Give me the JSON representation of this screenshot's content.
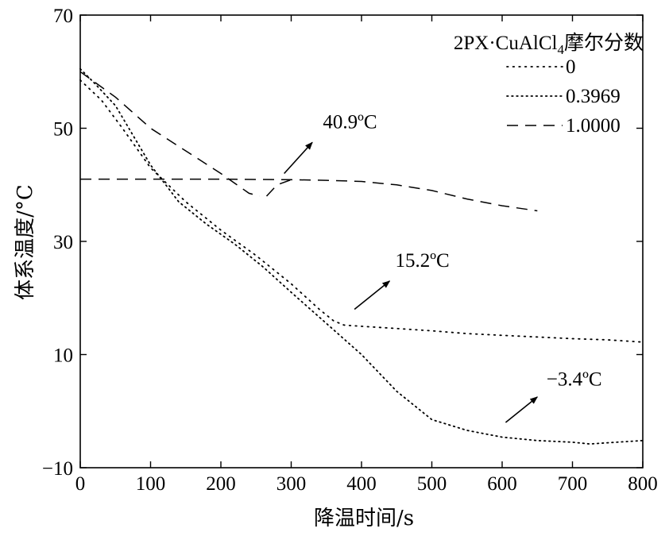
{
  "chart_data": {
    "type": "line",
    "xlabel": "降温时间/s",
    "ylabel": "体系温度/°C",
    "xlim": [
      0,
      800
    ],
    "ylim": [
      -10,
      70
    ],
    "xticks": [
      0,
      100,
      200,
      300,
      400,
      500,
      600,
      700,
      800
    ],
    "yticks": [
      -10,
      10,
      30,
      50,
      70
    ],
    "xtick_labels": [
      "0",
      "100",
      "200",
      "300",
      "400",
      "500",
      "600",
      "700",
      "800"
    ],
    "ytick_labels": [
      "−10",
      "10",
      "30",
      "50",
      "70"
    ],
    "grid": false,
    "legend": {
      "title_main": "2PX·CuAlCl",
      "title_sub": "4",
      "title_tail": "摩尔分数",
      "placement": "top-right"
    },
    "series": [
      {
        "name": "0",
        "style": "dotted",
        "x": [
          0,
          30,
          60,
          100,
          150,
          200,
          250,
          300,
          340,
          360,
          375,
          400,
          450,
          500,
          550,
          600,
          650,
          700,
          750,
          800
        ],
        "y": [
          58.5,
          55,
          50,
          43,
          37,
          32,
          27.5,
          22.5,
          18,
          16,
          15.2,
          15,
          14.6,
          14.2,
          13.7,
          13.4,
          13.1,
          12.8,
          12.6,
          12.2
        ]
      },
      {
        "name": "0.3969",
        "style": "sparse-dotted",
        "x": [
          0,
          20,
          50,
          100,
          140,
          180,
          220,
          260,
          300,
          350,
          400,
          450,
          500,
          550,
          600,
          650,
          700,
          725,
          750,
          800
        ],
        "y": [
          60.5,
          58,
          54,
          43.5,
          37,
          33,
          29.5,
          25.5,
          21,
          15.5,
          10,
          3.5,
          -1.5,
          -3.4,
          -4.6,
          -5.2,
          -5.5,
          -5.8,
          -5.6,
          -5.2
        ]
      },
      {
        "name": "1.0000",
        "style": "dashed",
        "segments": [
          {
            "x": [
              0,
              50,
              100,
              150,
              200,
              240,
              255
            ],
            "y": [
              60,
              55.5,
              50,
              46,
              42,
              38.5,
              38
            ]
          },
          {
            "x": [
              265,
              280,
              300
            ],
            "y": [
              38,
              40,
              40.9
            ]
          },
          {
            "x": [
              0,
              100,
              200,
              300,
              350,
              400,
              450,
              500,
              550,
              600,
              650
            ],
            "y": [
              41,
              41,
              41,
              40.9,
              40.8,
              40.6,
              40,
              39,
              37.5,
              36.3,
              35.4
            ]
          }
        ]
      }
    ],
    "annotations": [
      {
        "text": "40.9ºC",
        "arrow_from": [
          290,
          42
        ],
        "arrow_to": [
          330,
          47.5
        ],
        "text_at": [
          345,
          50
        ]
      },
      {
        "text": "15.2ºC",
        "arrow_from": [
          390,
          18
        ],
        "arrow_to": [
          440,
          23
        ],
        "text_at": [
          448,
          25.5
        ]
      },
      {
        "text": "−3.4ºC",
        "arrow_from": [
          605,
          -2
        ],
        "arrow_to": [
          650,
          2.5
        ],
        "text_at": [
          663,
          4.5
        ]
      }
    ]
  }
}
